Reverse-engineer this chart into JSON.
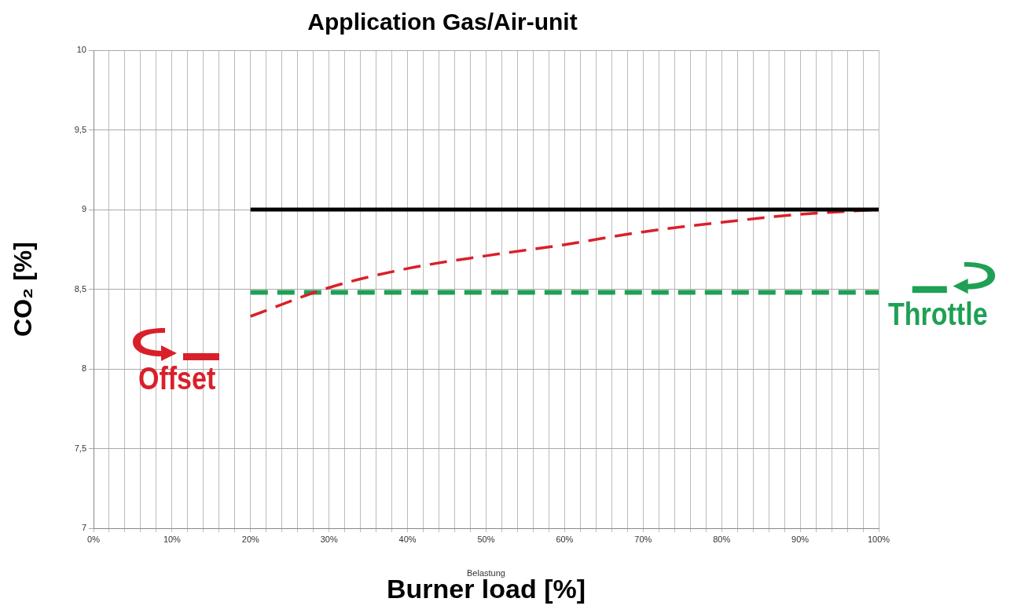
{
  "chart_data": {
    "type": "line",
    "title": "Application Gas/Air-unit",
    "xlabel": "Burner load [%]",
    "ylabel": "CO₂ [%]",
    "annotations": [
      "Belastung",
      "Offset",
      "Throttle"
    ],
    "xlim": [
      0,
      100
    ],
    "xticks": [
      {
        "value": 0,
        "label": "0%"
      },
      {
        "value": 2,
        "label": null
      },
      {
        "value": 4,
        "label": null
      },
      {
        "value": 6,
        "label": null
      },
      {
        "value": 8,
        "label": null
      },
      {
        "value": 10,
        "label": "10%"
      },
      {
        "value": 12,
        "label": null
      },
      {
        "value": 14,
        "label": null
      },
      {
        "value": 16,
        "label": null
      },
      {
        "value": 18,
        "label": null
      },
      {
        "value": 20,
        "label": "20%"
      },
      {
        "value": 22,
        "label": null
      },
      {
        "value": 24,
        "label": null
      },
      {
        "value": 26,
        "label": null
      },
      {
        "value": 28,
        "label": null
      },
      {
        "value": 30,
        "label": "30%"
      },
      {
        "value": 32,
        "label": null
      },
      {
        "value": 34,
        "label": null
      },
      {
        "value": 36,
        "label": null
      },
      {
        "value": 38,
        "label": null
      },
      {
        "value": 40,
        "label": "40%"
      },
      {
        "value": 42,
        "label": null
      },
      {
        "value": 44,
        "label": null
      },
      {
        "value": 46,
        "label": null
      },
      {
        "value": 48,
        "label": null
      },
      {
        "value": 50,
        "label": "50%"
      },
      {
        "value": 52,
        "label": null
      },
      {
        "value": 54,
        "label": null
      },
      {
        "value": 56,
        "label": null
      },
      {
        "value": 58,
        "label": null
      },
      {
        "value": 60,
        "label": "60%"
      },
      {
        "value": 62,
        "label": null
      },
      {
        "value": 64,
        "label": null
      },
      {
        "value": 66,
        "label": null
      },
      {
        "value": 68,
        "label": null
      },
      {
        "value": 70,
        "label": "70%"
      },
      {
        "value": 72,
        "label": null
      },
      {
        "value": 74,
        "label": null
      },
      {
        "value": 76,
        "label": null
      },
      {
        "value": 78,
        "label": null
      },
      {
        "value": 80,
        "label": "80%"
      },
      {
        "value": 82,
        "label": null
      },
      {
        "value": 84,
        "label": null
      },
      {
        "value": 86,
        "label": null
      },
      {
        "value": 88,
        "label": null
      },
      {
        "value": 90,
        "label": "90%"
      },
      {
        "value": 92,
        "label": null
      },
      {
        "value": 94,
        "label": null
      },
      {
        "value": 96,
        "label": null
      },
      {
        "value": 98,
        "label": null
      },
      {
        "value": 100,
        "label": "100%"
      }
    ],
    "ylim": [
      7,
      10
    ],
    "yticks": [
      7,
      {
        "value": 7.5,
        "label": "7,5"
      },
      8,
      {
        "value": 8.5,
        "label": "8,5"
      },
      9,
      {
        "value": 9.5,
        "label": "9,5"
      },
      10
    ],
    "grid": true,
    "legend": false,
    "marker": "none",
    "series": [
      {
        "color": "#000000",
        "line_style": "solid",
        "x": [
          20,
          100
        ],
        "values": [
          9,
          9
        ]
      },
      {
        "color": "#d9202a",
        "line_style": "dashed",
        "x": [
          20,
          30,
          40,
          50,
          60,
          70,
          80,
          90,
          100
        ],
        "values": [
          8.33,
          8.51,
          8.63,
          8.71,
          8.78,
          8.86,
          8.92,
          8.97,
          9.0
        ]
      },
      {
        "color": "#1fa055",
        "line_style": "dashed",
        "x": [
          20,
          100
        ],
        "values": [
          8.48,
          8.48
        ]
      }
    ]
  }
}
